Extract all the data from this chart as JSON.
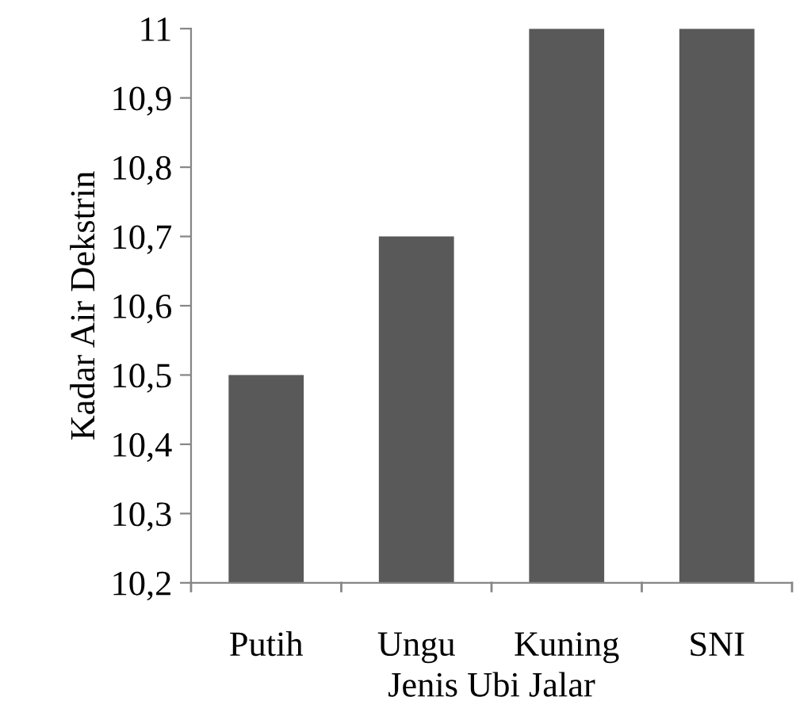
{
  "chart_data": {
    "type": "bar",
    "xlabel": "Jenis Ubi Jalar",
    "ylabel": "Kadar Air Dekstrin",
    "categories": [
      "Putih",
      "Ungu",
      "Kuning",
      "SNI"
    ],
    "values": [
      10.5,
      10.7,
      11,
      11
    ],
    "color": "#595959",
    "ylim": [
      10.2,
      11
    ],
    "yticks": [
      {
        "value": 10.2,
        "label": "10,2"
      },
      {
        "value": 10.3,
        "label": "10,3"
      },
      {
        "value": 10.4,
        "label": "10,4"
      },
      {
        "value": 10.5,
        "label": "10,5"
      },
      {
        "value": 10.6,
        "label": "10,6"
      },
      {
        "value": 10.7,
        "label": "10,7"
      },
      {
        "value": 10.8,
        "label": "10,8"
      },
      {
        "value": 10.9,
        "label": "10,9"
      },
      {
        "value": 11,
        "label": "11"
      }
    ],
    "grid": false,
    "legend": false
  }
}
